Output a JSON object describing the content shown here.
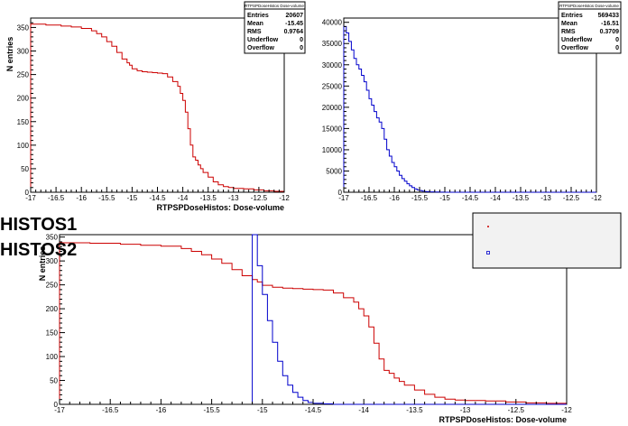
{
  "colors": {
    "histos1": "#cc0000",
    "histos2": "#0000cc",
    "frame": "#000000",
    "legend_bg": "#f2f2f2",
    "stats_bg": "#ffffff"
  },
  "overlay_labels": [
    "HISTOS1",
    "HISTOS2"
  ],
  "chart_data": [
    {
      "type": "line",
      "subtype": "histogram-step",
      "xlabel": "RTPSPDoseHistos: Dose-volume",
      "ylabel": "N entries",
      "xlim": [
        -17,
        -12
      ],
      "ylim": [
        0,
        370
      ],
      "xticks": [
        "-17",
        "-16.5",
        "-16",
        "-15.5",
        "-15",
        "-14.5",
        "-14",
        "-13.5",
        "-13",
        "-12.5",
        "-12"
      ],
      "yticks": [
        "0",
        "50",
        "100",
        "150",
        "200",
        "250",
        "300",
        "350"
      ],
      "stats": {
        "title": "RTPSPDoseHistos  Dose-volume",
        "rows": [
          {
            "label": "Entries",
            "value": "20607"
          },
          {
            "label": "Mean",
            "value": "-15.45"
          },
          {
            "label": "RMS",
            "value": "0.9764"
          },
          {
            "label": "Underflow",
            "value": "0"
          },
          {
            "label": "Overflow",
            "value": "0"
          }
        ]
      },
      "series": [
        {
          "color": "#cc0000",
          "x": [
            -17.0,
            -16.7,
            -16.4,
            -16.2,
            -16.0,
            -15.8,
            -15.7,
            -15.6,
            -15.5,
            -15.4,
            -15.3,
            -15.2,
            -15.1,
            -15.05,
            -15.0,
            -14.9,
            -14.8,
            -14.7,
            -14.6,
            -14.5,
            -14.4,
            -14.3,
            -14.2,
            -14.1,
            -14.05,
            -14.0,
            -13.95,
            -13.9,
            -13.85,
            -13.8,
            -13.75,
            -13.7,
            -13.65,
            -13.6,
            -13.5,
            -13.4,
            -13.3,
            -13.2,
            -13.1,
            -13.0,
            -12.8,
            -12.6,
            -12.4,
            -12.2,
            -12.0
          ],
          "y": [
            357,
            355,
            353,
            351,
            348,
            343,
            337,
            330,
            320,
            310,
            297,
            283,
            275,
            270,
            262,
            258,
            256,
            255,
            254,
            253,
            252,
            245,
            235,
            225,
            210,
            195,
            170,
            135,
            100,
            75,
            68,
            58,
            50,
            42,
            32,
            22,
            16,
            12,
            10,
            8,
            7,
            5,
            3,
            2,
            0
          ]
        }
      ]
    },
    {
      "type": "line",
      "subtype": "histogram-step",
      "xlabel": "",
      "ylabel": "",
      "xlim": [
        -17,
        -12
      ],
      "ylim": [
        0,
        41000
      ],
      "xticks": [
        "-17",
        "-16.5",
        "-16",
        "-15.5",
        "-15",
        "-14.5",
        "-14",
        "-13.5",
        "-13",
        "-12.5",
        "-12"
      ],
      "yticks": [
        "0",
        "5000",
        "10000",
        "15000",
        "20000",
        "25000",
        "30000",
        "35000",
        "40000"
      ],
      "stats": {
        "title": "RTPSPDoseHistos  Dose-volume",
        "rows": [
          {
            "label": "Entries",
            "value": "569433"
          },
          {
            "label": "Mean",
            "value": "-16.51"
          },
          {
            "label": "RMS",
            "value": "0.3709"
          },
          {
            "label": "Underflow",
            "value": "0"
          },
          {
            "label": "Overflow",
            "value": "0"
          }
        ]
      },
      "series": [
        {
          "color": "#0000cc",
          "x": [
            -17.0,
            -16.95,
            -16.9,
            -16.85,
            -16.8,
            -16.75,
            -16.7,
            -16.65,
            -16.6,
            -16.55,
            -16.5,
            -16.45,
            -16.4,
            -16.35,
            -16.3,
            -16.25,
            -16.2,
            -16.15,
            -16.1,
            -16.05,
            -16.0,
            -15.95,
            -15.9,
            -15.85,
            -15.8,
            -15.75,
            -15.7,
            -15.65,
            -15.6,
            -15.55,
            -15.5,
            -15.45,
            -15.4,
            -15.35,
            -15.3,
            -15.2,
            -15.1,
            -15.0,
            -14.9,
            -12.0
          ],
          "y": [
            39000,
            37500,
            35500,
            33500,
            31500,
            30000,
            29000,
            27500,
            26000,
            24000,
            22000,
            20500,
            19000,
            17500,
            16500,
            15000,
            12500,
            10000,
            8500,
            7000,
            6000,
            5000,
            4000,
            3200,
            2600,
            2000,
            1500,
            1100,
            800,
            550,
            400,
            280,
            180,
            120,
            80,
            40,
            20,
            10,
            0,
            0
          ]
        }
      ]
    },
    {
      "type": "line",
      "subtype": "histogram-step-overlay",
      "xlabel": "RTPSPDoseHistos: Dose-volume",
      "ylabel": "N entries",
      "xlim": [
        -17,
        -12
      ],
      "ylim": [
        0,
        355
      ],
      "xticks": [
        "-17",
        "-16.5",
        "-16",
        "-15.5",
        "-15",
        "-14.5",
        "-14",
        "-13.5",
        "-13",
        "-12.5",
        "-12"
      ],
      "yticks": [
        "0",
        "50",
        "100",
        "150",
        "200",
        "250",
        "300",
        "350"
      ],
      "legend": {
        "placement": "top-right"
      },
      "series": [
        {
          "color": "#cc0000",
          "x": [
            -17.0,
            -16.7,
            -16.4,
            -16.2,
            -16.0,
            -15.8,
            -15.7,
            -15.6,
            -15.5,
            -15.4,
            -15.3,
            -15.2,
            -15.1,
            -15.05,
            -15.0,
            -14.9,
            -14.8,
            -14.7,
            -14.6,
            -14.5,
            -14.4,
            -14.3,
            -14.2,
            -14.1,
            -14.05,
            -14.0,
            -13.95,
            -13.9,
            -13.85,
            -13.8,
            -13.75,
            -13.7,
            -13.65,
            -13.6,
            -13.5,
            -13.4,
            -13.3,
            -13.2,
            -13.1,
            -13.0,
            -12.8,
            -12.6,
            -12.4,
            -12.2,
            -12.0
          ],
          "y": [
            338,
            337,
            335,
            333,
            331,
            326,
            320,
            313,
            304,
            295,
            282,
            269,
            261,
            256,
            249,
            245,
            243,
            242,
            241,
            240,
            239,
            233,
            223,
            214,
            200,
            185,
            162,
            128,
            95,
            71,
            65,
            55,
            48,
            40,
            30,
            21,
            15,
            11,
            9,
            8,
            7,
            5,
            3,
            2,
            0
          ]
        },
        {
          "color": "#0000cc",
          "x": [
            -15.1,
            -15.05,
            -15.0,
            -14.95,
            -14.9,
            -14.85,
            -14.8,
            -14.75,
            -14.7,
            -14.65,
            -14.6,
            -14.55,
            -14.5,
            -14.4,
            -14.3,
            -12.0
          ],
          "y": [
            355,
            290,
            230,
            175,
            130,
            90,
            60,
            40,
            25,
            15,
            8,
            4,
            2,
            1,
            0,
            0
          ]
        }
      ]
    }
  ]
}
